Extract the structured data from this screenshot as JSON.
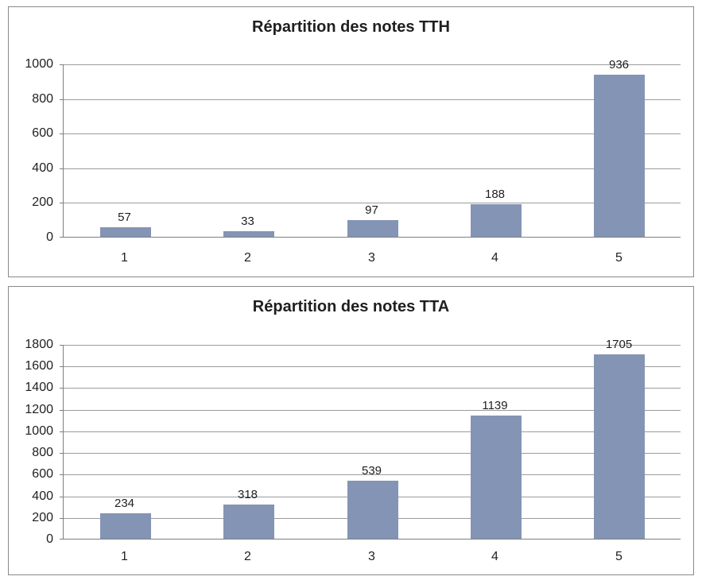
{
  "colors": {
    "bar": "#8494B4",
    "gridline": "#9c9c9c",
    "axis": "#7f7f7f",
    "panel_border": "#8a8a8a",
    "text": "#1f1f1f"
  },
  "chart_data": [
    {
      "type": "bar",
      "title": "Répartition des notes TTH",
      "categories": [
        "1",
        "2",
        "3",
        "4",
        "5"
      ],
      "values": [
        57,
        33,
        97,
        188,
        936
      ],
      "value_labels": [
        "57",
        "33",
        "97",
        "188",
        "936"
      ],
      "xlabel": "",
      "ylabel": "",
      "ylim": [
        0,
        1000
      ],
      "ytick": 200,
      "grid": true,
      "legend": false,
      "bar_color": "#8494B4"
    },
    {
      "type": "bar",
      "title": "Répartition des notes TTA",
      "categories": [
        "1",
        "2",
        "3",
        "4",
        "5"
      ],
      "values": [
        234,
        318,
        539,
        1139,
        1705
      ],
      "value_labels": [
        "234",
        "318",
        "539",
        "1139",
        "1705"
      ],
      "xlabel": "",
      "ylabel": "",
      "ylim": [
        0,
        1800
      ],
      "ytick": 200,
      "grid": true,
      "legend": false,
      "bar_color": "#8494B4"
    }
  ]
}
